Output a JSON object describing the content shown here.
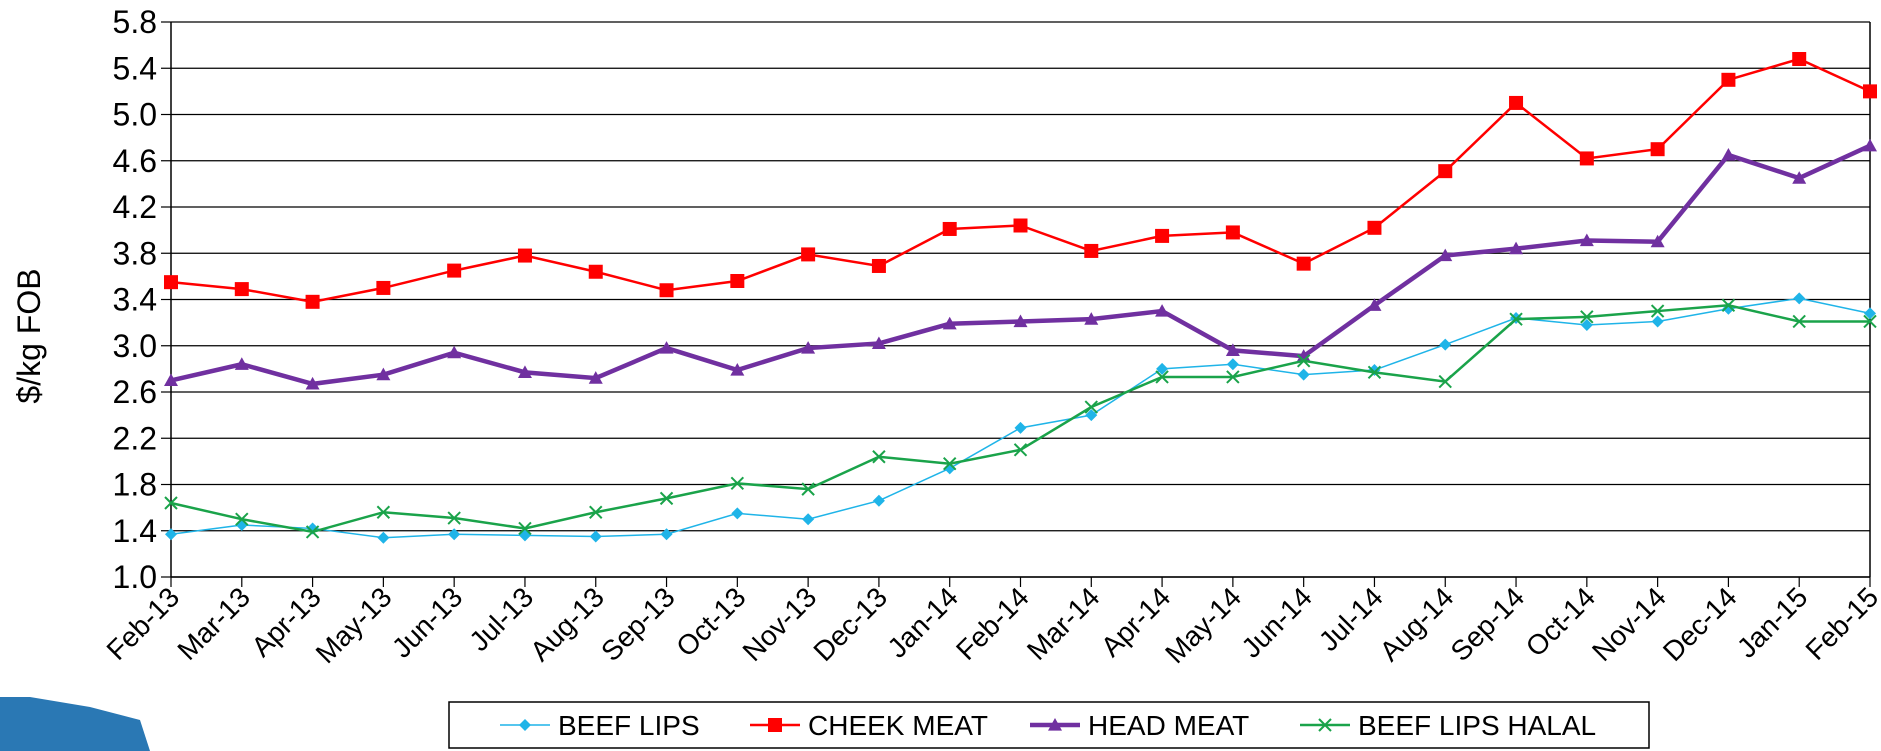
{
  "chart_data": {
    "type": "line",
    "title": "",
    "xlabel": "",
    "ylabel": "$/kg FOB",
    "ylim": [
      1.0,
      5.8
    ],
    "yticks": [
      "1.0",
      "1.4",
      "1.8",
      "2.2",
      "2.6",
      "3.0",
      "3.4",
      "3.8",
      "4.2",
      "4.6",
      "5.0",
      "5.4",
      "5.8"
    ],
    "grid": "horizontal",
    "legend_position": "bottom",
    "categories": [
      "Feb-13",
      "Mar-13",
      "Apr-13",
      "May-13",
      "Jun-13",
      "Jul-13",
      "Aug-13",
      "Sep-13",
      "Oct-13",
      "Nov-13",
      "Dec-13",
      "Jan-14",
      "Feb-14",
      "Mar-14",
      "Apr-14",
      "May-14",
      "Jun-14",
      "Jul-14",
      "Aug-14",
      "Sep-14",
      "Oct-14",
      "Nov-14",
      "Dec-14",
      "Jan-15",
      "Feb-15"
    ],
    "series": [
      {
        "name": "BEEF LIPS",
        "color": "#1fb4e8",
        "marker": "diamond",
        "values": [
          1.37,
          1.45,
          1.42,
          1.34,
          1.37,
          1.36,
          1.35,
          1.37,
          1.55,
          1.5,
          1.66,
          1.94,
          2.29,
          2.4,
          2.8,
          2.84,
          2.75,
          2.79,
          3.01,
          3.24,
          3.18,
          3.21,
          3.32,
          3.41,
          3.28
        ]
      },
      {
        "name": "CHEEK MEAT",
        "color": "#ff0000",
        "marker": "square",
        "values": [
          3.55,
          3.49,
          3.38,
          3.5,
          3.65,
          3.78,
          3.64,
          3.48,
          3.56,
          3.79,
          3.69,
          4.01,
          4.04,
          3.82,
          3.95,
          3.98,
          3.71,
          4.02,
          4.51,
          5.1,
          4.62,
          4.7,
          5.3,
          5.48,
          5.2
        ]
      },
      {
        "name": "HEAD MEAT",
        "color": "#7030a0",
        "marker": "triangle",
        "values": [
          2.7,
          2.84,
          2.67,
          2.75,
          2.94,
          2.77,
          2.72,
          2.98,
          2.79,
          2.98,
          3.02,
          3.19,
          3.21,
          3.23,
          3.3,
          2.96,
          2.91,
          3.35,
          3.78,
          3.84,
          3.91,
          3.9,
          4.65,
          4.45,
          4.73
        ]
      },
      {
        "name": "BEEF LIPS HALAL",
        "color": "#1aa34a",
        "marker": "x",
        "values": [
          1.64,
          1.5,
          1.39,
          1.56,
          1.51,
          1.42,
          1.56,
          1.68,
          1.81,
          1.76,
          2.04,
          1.98,
          2.1,
          2.47,
          2.73,
          2.73,
          2.87,
          2.77,
          2.69,
          3.23,
          3.25,
          3.3,
          3.35,
          3.21,
          3.21
        ]
      }
    ]
  }
}
